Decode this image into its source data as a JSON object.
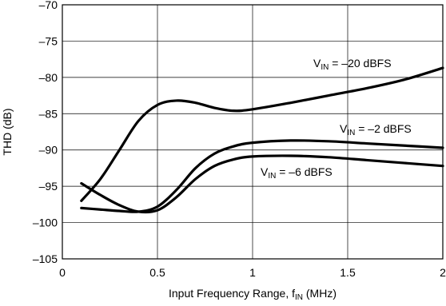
{
  "chart_data": {
    "type": "line",
    "xlabel": "Input Frequency Range, f",
    "xlabel_sub": "IN",
    "xlabel_suffix": " (MHz)",
    "ylabel": "THD (dB)",
    "xlim": [
      0,
      2
    ],
    "ylim": [
      -105,
      -70
    ],
    "xticks": [
      0,
      0.5,
      1,
      1.5,
      2
    ],
    "xtick_labels": [
      "0",
      "0.5",
      "1",
      "1.5",
      "2"
    ],
    "yticks": [
      -70,
      -75,
      -80,
      -85,
      -90,
      -95,
      -100,
      -105
    ],
    "ytick_labels": [
      "–70",
      "–75",
      "–80",
      "–85",
      "–90",
      "–95",
      "–100",
      "–105"
    ],
    "grid": true,
    "series": [
      {
        "name_prefix": "V",
        "name_sub": "IN",
        "name_suffix": " = –20 dBFS",
        "points": [
          [
            0.1,
            -97.0
          ],
          [
            0.2,
            -94.0
          ],
          [
            0.3,
            -90.0
          ],
          [
            0.4,
            -86.0
          ],
          [
            0.5,
            -83.8
          ],
          [
            0.6,
            -83.2
          ],
          [
            0.7,
            -83.5
          ],
          [
            0.8,
            -84.2
          ],
          [
            0.9,
            -84.6
          ],
          [
            1.0,
            -84.4
          ],
          [
            1.2,
            -83.5
          ],
          [
            1.4,
            -82.5
          ],
          [
            1.6,
            -81.5
          ],
          [
            1.8,
            -80.3
          ],
          [
            2.0,
            -78.7
          ]
        ]
      },
      {
        "name_prefix": "V",
        "name_sub": "IN",
        "name_suffix": " = –2 dBFS",
        "points": [
          [
            0.1,
            -98.0
          ],
          [
            0.2,
            -98.2
          ],
          [
            0.3,
            -98.4
          ],
          [
            0.4,
            -98.5
          ],
          [
            0.5,
            -97.8
          ],
          [
            0.6,
            -95.5
          ],
          [
            0.7,
            -92.5
          ],
          [
            0.8,
            -90.5
          ],
          [
            0.9,
            -89.5
          ],
          [
            1.0,
            -89.0
          ],
          [
            1.2,
            -88.7
          ],
          [
            1.4,
            -88.8
          ],
          [
            1.6,
            -89.1
          ],
          [
            1.8,
            -89.4
          ],
          [
            2.0,
            -89.7
          ]
        ]
      },
      {
        "name_prefix": "V",
        "name_sub": "IN",
        "name_suffix": " = –6 dBFS",
        "points": [
          [
            0.1,
            -94.6
          ],
          [
            0.2,
            -96.2
          ],
          [
            0.3,
            -97.6
          ],
          [
            0.4,
            -98.5
          ],
          [
            0.5,
            -98.3
          ],
          [
            0.6,
            -96.5
          ],
          [
            0.7,
            -94.0
          ],
          [
            0.8,
            -92.2
          ],
          [
            0.9,
            -91.3
          ],
          [
            1.0,
            -90.9
          ],
          [
            1.2,
            -90.8
          ],
          [
            1.4,
            -91.0
          ],
          [
            1.6,
            -91.4
          ],
          [
            1.8,
            -91.8
          ],
          [
            2.0,
            -92.2
          ]
        ]
      }
    ]
  }
}
